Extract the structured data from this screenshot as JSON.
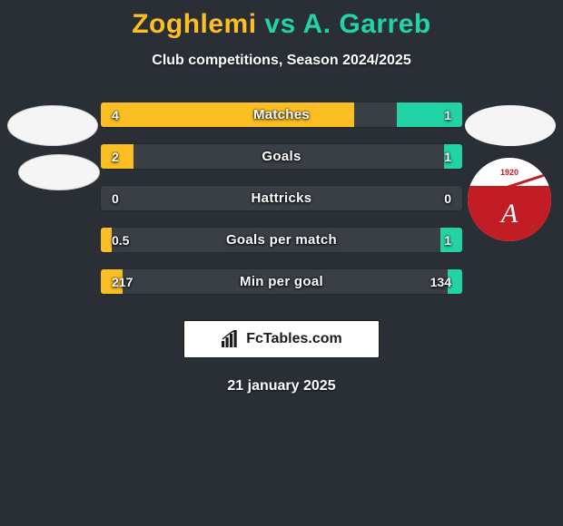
{
  "background_color": "#2a2f35",
  "title": {
    "player1": "Zoghlemi",
    "vs": "vs",
    "player2": "A. Garreb",
    "player1_color": "#fbbf24",
    "vs_color": "#22d3a5",
    "player2_color": "#22d3a5",
    "fontsize": 30
  },
  "subtitle": "Club competitions, Season 2024/2025",
  "club_badge": {
    "year": "1920",
    "year_color": "#c21c24",
    "top_bg": "#ffffff",
    "bottom_bg": "#c21c24",
    "letter": "A",
    "letter_color": "#ffffff"
  },
  "stats": {
    "row_bg": "#3a3f46",
    "left_color": "#fbbf24",
    "right_color": "#22d3a5",
    "label_fontsize": 15,
    "value_fontsize": 14,
    "rows": [
      {
        "label": "Matches",
        "left_val": "4",
        "right_val": "1",
        "left_pct": 70,
        "right_pct": 18
      },
      {
        "label": "Goals",
        "left_val": "2",
        "right_val": "1",
        "left_pct": 9,
        "right_pct": 5
      },
      {
        "label": "Hattricks",
        "left_val": "0",
        "right_val": "0",
        "left_pct": 0,
        "right_pct": 0
      },
      {
        "label": "Goals per match",
        "left_val": "0.5",
        "right_val": "1",
        "left_pct": 3,
        "right_pct": 6
      },
      {
        "label": "Min per goal",
        "left_val": "217",
        "right_val": "134",
        "left_pct": 6,
        "right_pct": 4
      }
    ]
  },
  "brand": {
    "text": "FcTables.com",
    "text_color": "#1b1b1b",
    "bg": "#ffffff"
  },
  "date": "21 january 2025"
}
